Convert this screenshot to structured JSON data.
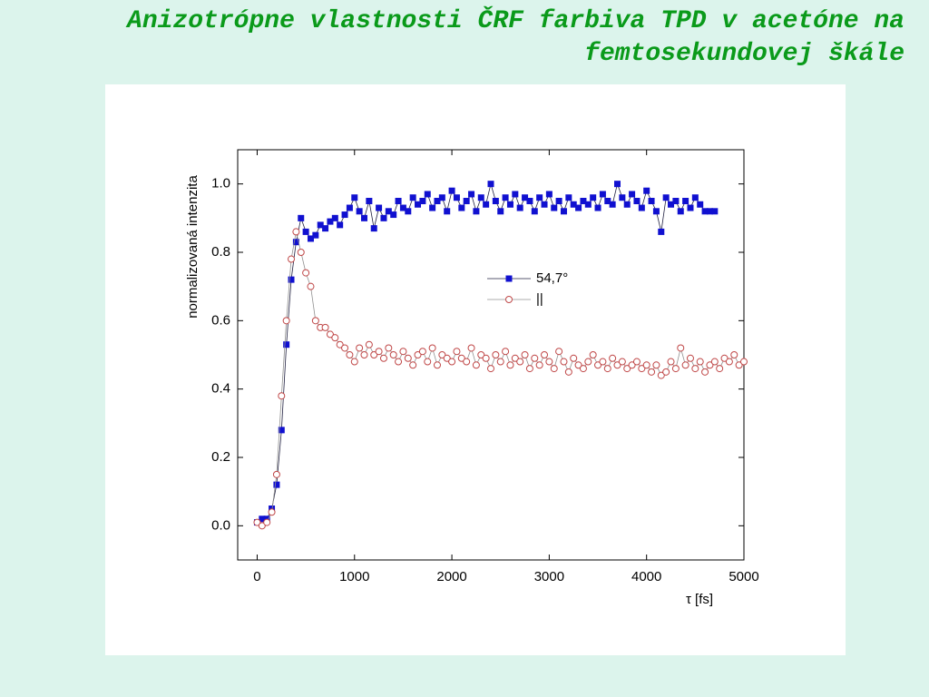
{
  "title": "Anizotrópne vlastnosti ČRF farbiva TPD v acetóne na femtosekundovej škále",
  "chart_data": {
    "type": "line",
    "xlabel": "τ [fs]",
    "ylabel": "normalizovaná intenzita",
    "xlim": [
      -200,
      5000
    ],
    "ylim": [
      -0.1,
      1.1
    ],
    "xticks": [
      0,
      1000,
      2000,
      3000,
      4000,
      5000
    ],
    "yticks": [
      {
        "value": 0,
        "label": "0.0"
      },
      {
        "value": 0.2,
        "label": "0.2"
      },
      {
        "value": 0.4,
        "label": "0.4"
      },
      {
        "value": 0.6,
        "label": "0.6"
      },
      {
        "value": 0.8,
        "label": "0.8"
      },
      {
        "value": 1,
        "label": "1.0"
      }
    ],
    "grid": false,
    "series": [
      {
        "name": "54,7°",
        "color": "#1010d0",
        "line_color": "#202040",
        "marker": "square",
        "x": [
          0,
          50,
          100,
          150,
          200,
          250,
          300,
          350,
          400,
          450,
          500,
          550,
          600,
          650,
          700,
          750,
          800,
          850,
          900,
          950,
          1000,
          1050,
          1100,
          1150,
          1200,
          1250,
          1300,
          1350,
          1400,
          1450,
          1500,
          1550,
          1600,
          1650,
          1700,
          1750,
          1800,
          1850,
          1900,
          1950,
          2000,
          2050,
          2100,
          2150,
          2200,
          2250,
          2300,
          2350,
          2400,
          2450,
          2500,
          2550,
          2600,
          2650,
          2700,
          2750,
          2800,
          2850,
          2900,
          2950,
          3000,
          3050,
          3100,
          3150,
          3200,
          3250,
          3300,
          3350,
          3400,
          3450,
          3500,
          3550,
          3600,
          3650,
          3700,
          3750,
          3800,
          3850,
          3900,
          3950,
          4000,
          4050,
          4100,
          4150,
          4200,
          4250,
          4300,
          4350,
          4400,
          4450,
          4500,
          4550,
          4600,
          4650,
          4700
        ],
        "values": [
          0.01,
          0.02,
          0.02,
          0.05,
          0.12,
          0.28,
          0.53,
          0.72,
          0.83,
          0.9,
          0.86,
          0.84,
          0.85,
          0.88,
          0.87,
          0.89,
          0.9,
          0.88,
          0.91,
          0.93,
          0.96,
          0.92,
          0.9,
          0.95,
          0.87,
          0.93,
          0.9,
          0.92,
          0.91,
          0.95,
          0.93,
          0.92,
          0.96,
          0.94,
          0.95,
          0.97,
          0.93,
          0.95,
          0.96,
          0.92,
          0.98,
          0.96,
          0.93,
          0.95,
          0.97,
          0.92,
          0.96,
          0.94,
          1.0,
          0.95,
          0.92,
          0.96,
          0.94,
          0.97,
          0.93,
          0.96,
          0.95,
          0.92,
          0.96,
          0.94,
          0.97,
          0.93,
          0.95,
          0.92,
          0.96,
          0.94,
          0.93,
          0.95,
          0.94,
          0.96,
          0.93,
          0.97,
          0.95,
          0.94,
          1.0,
          0.96,
          0.94,
          0.97,
          0.95,
          0.93,
          0.98,
          0.95,
          0.92,
          0.86,
          0.96,
          0.94,
          0.95,
          0.92,
          0.95,
          0.93,
          0.96,
          0.94,
          0.92,
          0.92,
          0.92
        ]
      },
      {
        "name": "||",
        "color": "#c04848",
        "line_color": "#909090",
        "marker": "circle",
        "x": [
          0,
          50,
          100,
          150,
          200,
          250,
          300,
          350,
          400,
          450,
          500,
          550,
          600,
          650,
          700,
          750,
          800,
          850,
          900,
          950,
          1000,
          1050,
          1100,
          1150,
          1200,
          1250,
          1300,
          1350,
          1400,
          1450,
          1500,
          1550,
          1600,
          1650,
          1700,
          1750,
          1800,
          1850,
          1900,
          1950,
          2000,
          2050,
          2100,
          2150,
          2200,
          2250,
          2300,
          2350,
          2400,
          2450,
          2500,
          2550,
          2600,
          2650,
          2700,
          2750,
          2800,
          2850,
          2900,
          2950,
          3000,
          3050,
          3100,
          3150,
          3200,
          3250,
          3300,
          3350,
          3400,
          3450,
          3500,
          3550,
          3600,
          3650,
          3700,
          3750,
          3800,
          3850,
          3900,
          3950,
          4000,
          4050,
          4100,
          4150,
          4200,
          4250,
          4300,
          4350,
          4400,
          4450,
          4500,
          4550,
          4600,
          4650,
          4700,
          4750,
          4800,
          4850,
          4900,
          4950,
          5000
        ],
        "values": [
          0.01,
          0.0,
          0.01,
          0.04,
          0.15,
          0.38,
          0.6,
          0.78,
          0.86,
          0.8,
          0.74,
          0.7,
          0.6,
          0.58,
          0.58,
          0.56,
          0.55,
          0.53,
          0.52,
          0.5,
          0.48,
          0.52,
          0.5,
          0.53,
          0.5,
          0.51,
          0.49,
          0.52,
          0.5,
          0.48,
          0.51,
          0.49,
          0.47,
          0.5,
          0.51,
          0.48,
          0.52,
          0.47,
          0.5,
          0.49,
          0.48,
          0.51,
          0.49,
          0.48,
          0.52,
          0.47,
          0.5,
          0.49,
          0.46,
          0.5,
          0.48,
          0.51,
          0.47,
          0.49,
          0.48,
          0.5,
          0.46,
          0.49,
          0.47,
          0.5,
          0.48,
          0.46,
          0.51,
          0.48,
          0.45,
          0.49,
          0.47,
          0.46,
          0.48,
          0.5,
          0.47,
          0.48,
          0.46,
          0.49,
          0.47,
          0.48,
          0.46,
          0.47,
          0.48,
          0.46,
          0.47,
          0.45,
          0.47,
          0.44,
          0.45,
          0.48,
          0.46,
          0.52,
          0.47,
          0.49,
          0.46,
          0.48,
          0.45,
          0.47,
          0.48,
          0.46,
          0.49,
          0.48,
          0.5,
          0.47,
          0.48
        ]
      }
    ]
  }
}
